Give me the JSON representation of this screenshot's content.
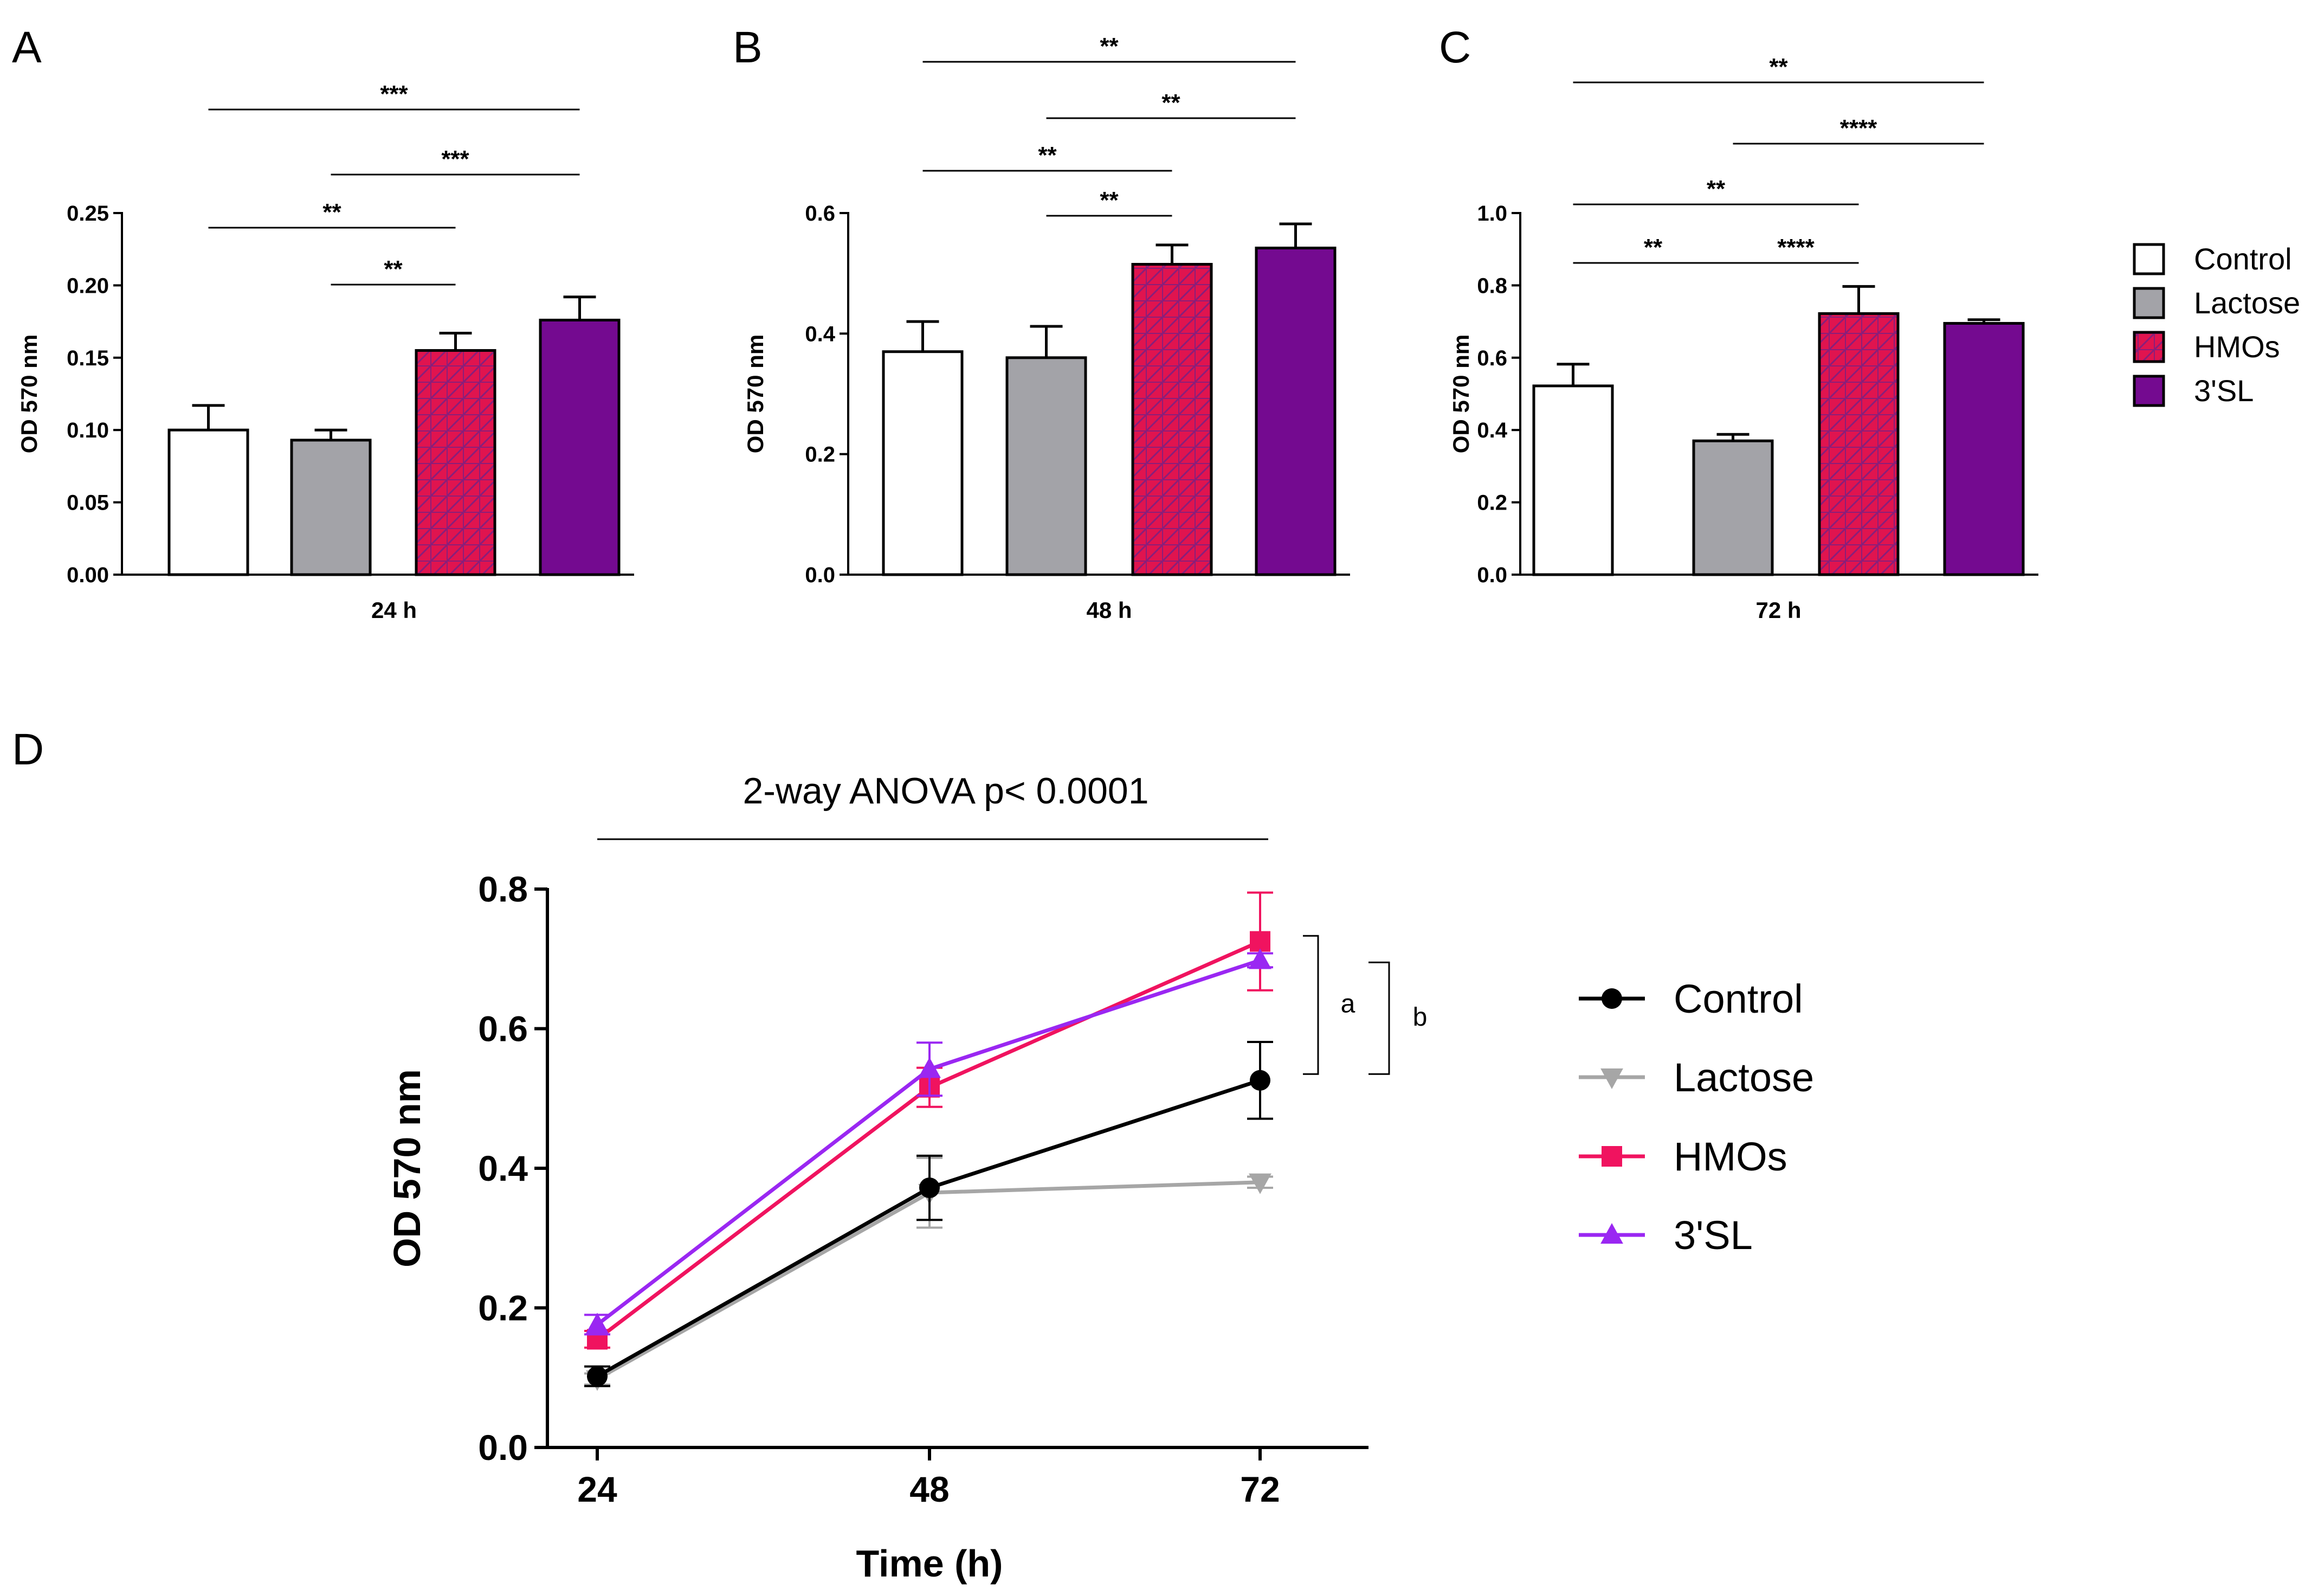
{
  "colors": {
    "control_bar": "#ffffff",
    "lactose_bar": "#a3a3a8",
    "hmos_bar": "#e0144f",
    "hmos_hatch": "#8a1e7a",
    "sl_bar": "#740a90",
    "control_line": "#000000",
    "lactose_line": "#a6a6a6",
    "hmos_line": "#f0135f",
    "sl_line": "#9a27f2"
  },
  "chart_data": [
    {
      "panel": "A",
      "type": "bar",
      "categories": [
        "Control",
        "Lactose",
        "HMOs",
        "3'SL"
      ],
      "values": [
        0.1,
        0.093,
        0.155,
        0.176
      ],
      "errors": [
        0.017,
        0.007,
        0.012,
        0.016
      ],
      "xlabel": "24 h",
      "ylabel": "OD 570 nm",
      "ylim": [
        0,
        0.25
      ],
      "yticks": [
        "0.00",
        "0.05",
        "0.10",
        "0.15",
        "0.20",
        "0.25"
      ],
      "significance": [
        {
          "from": 1,
          "to": 2,
          "label": "**"
        },
        {
          "from": 0,
          "to": 2,
          "label": "**"
        },
        {
          "from": 1,
          "to": 3,
          "label": "***"
        },
        {
          "from": 0,
          "to": 3,
          "label": "***"
        }
      ]
    },
    {
      "panel": "B",
      "type": "bar",
      "categories": [
        "Control",
        "Lactose",
        "HMOs",
        "3'SL"
      ],
      "values": [
        0.37,
        0.36,
        0.515,
        0.542
      ],
      "errors": [
        0.05,
        0.052,
        0.032,
        0.04
      ],
      "xlabel": "48 h",
      "ylabel": "OD 570 nm",
      "ylim": [
        0,
        0.6
      ],
      "yticks": [
        "0.0",
        "0.2",
        "0.4",
        "0.6"
      ],
      "significance": [
        {
          "from": 1,
          "to": 2,
          "label": "**"
        },
        {
          "from": 0,
          "to": 2,
          "label": "**"
        },
        {
          "from": 1,
          "to": 3,
          "label": "**"
        },
        {
          "from": 0,
          "to": 3,
          "label": "**"
        }
      ]
    },
    {
      "panel": "C",
      "type": "bar",
      "categories": [
        "Control",
        "Lactose",
        "HMOs",
        "3'SL"
      ],
      "values": [
        0.522,
        0.37,
        0.722,
        0.695
      ],
      "errors": [
        0.06,
        0.018,
        0.075,
        0.01
      ],
      "xlabel": "72 h",
      "ylabel": "OD 570 nm",
      "ylim": [
        0,
        1.0
      ],
      "yticks": [
        "0.0",
        "0.2",
        "0.4",
        "0.6",
        "0.8",
        "1.0"
      ],
      "significance": [
        {
          "from": 0,
          "to": 1,
          "label": "**"
        },
        {
          "from": 1,
          "to": 2,
          "label": "****"
        },
        {
          "from": 0,
          "to": 2,
          "label": "**"
        },
        {
          "from": 1,
          "to": 3,
          "label": "****"
        },
        {
          "from": 0,
          "to": 3,
          "label": "**"
        }
      ]
    },
    {
      "panel": "D",
      "type": "line",
      "x": [
        24,
        48,
        72
      ],
      "xticks": [
        "24",
        "48",
        "72"
      ],
      "xlabel": "Time (h)",
      "ylabel": "OD 570 nm",
      "ylim": [
        0,
        0.8
      ],
      "yticks": [
        "0.0",
        "0.2",
        "0.4",
        "0.6",
        "0.8"
      ],
      "annotation": "2-way ANOVA p< 0.0001",
      "brackets": [
        "a",
        "b"
      ],
      "series": [
        {
          "name": "Control",
          "marker": "circle",
          "values": [
            0.102,
            0.372,
            0.526
          ],
          "errors": [
            0.014,
            0.046,
            0.055
          ]
        },
        {
          "name": "Lactose",
          "marker": "triangle-down",
          "values": [
            0.098,
            0.365,
            0.38
          ],
          "errors": [
            0.008,
            0.05,
            0.008
          ]
        },
        {
          "name": "HMOs",
          "marker": "square",
          "values": [
            0.155,
            0.516,
            0.725
          ],
          "errors": [
            0.012,
            0.028,
            0.07
          ]
        },
        {
          "name": "3'SL",
          "marker": "triangle-up",
          "values": [
            0.176,
            0.542,
            0.698
          ],
          "errors": [
            0.014,
            0.038,
            0.01
          ]
        }
      ]
    }
  ],
  "legend_top": {
    "items": [
      "Control",
      "Lactose",
      "HMOs",
      "3'SL"
    ]
  }
}
